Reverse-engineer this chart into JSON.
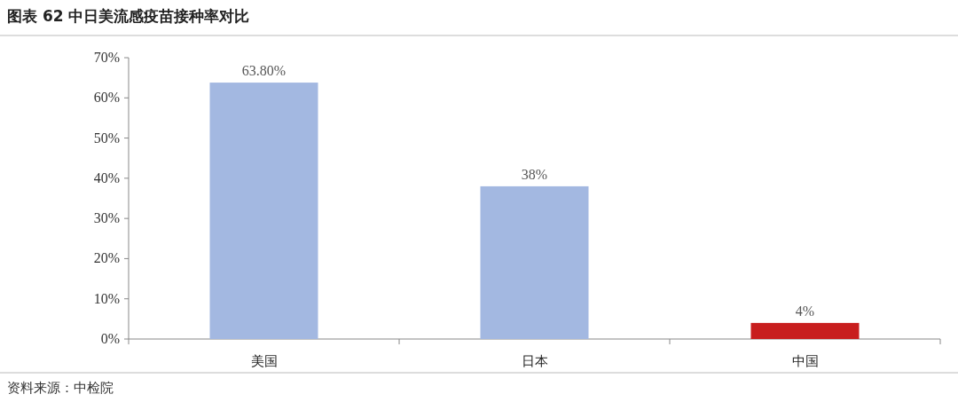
{
  "chart_data": {
    "type": "bar",
    "title": "图表 62 中日美流感疫苗接种率对比",
    "categories": [
      "美国",
      "日本",
      "中国"
    ],
    "values": [
      63.8,
      38,
      4
    ],
    "colors": [
      "#a3b8e1",
      "#a3b8e1",
      "#c81e1e"
    ],
    "value_labels": [
      "63.80%",
      "38%",
      "4%"
    ],
    "ylim": [
      0,
      70
    ],
    "yticks": [
      {
        "value": 0,
        "label": "0%"
      },
      {
        "value": 10,
        "label": "10%"
      },
      {
        "value": 20,
        "label": "20%"
      },
      {
        "value": 30,
        "label": "30%"
      },
      {
        "value": 40,
        "label": "40%"
      },
      {
        "value": 50,
        "label": "50%"
      },
      {
        "value": 60,
        "label": "60%"
      },
      {
        "value": 70,
        "label": "70%"
      }
    ],
    "annotations": [
      "资料来源：中检院"
    ]
  }
}
